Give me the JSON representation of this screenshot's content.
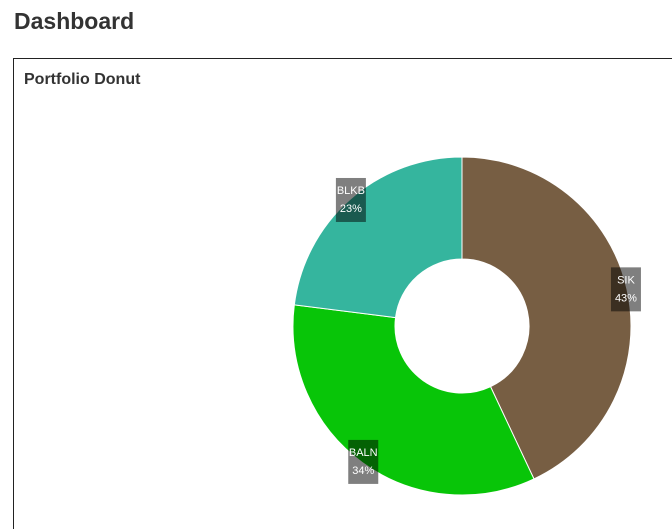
{
  "header": {
    "title": "Dashboard"
  },
  "chart_data": {
    "type": "donut",
    "title": "Portfolio Donut",
    "categories": [
      "SIK",
      "BALN",
      "BLKB"
    ],
    "values": [
      43,
      34,
      23
    ],
    "value_labels": [
      "43%",
      "34%",
      "23%"
    ],
    "colors": [
      "#775e43",
      "#08c508",
      "#35b59e"
    ]
  }
}
